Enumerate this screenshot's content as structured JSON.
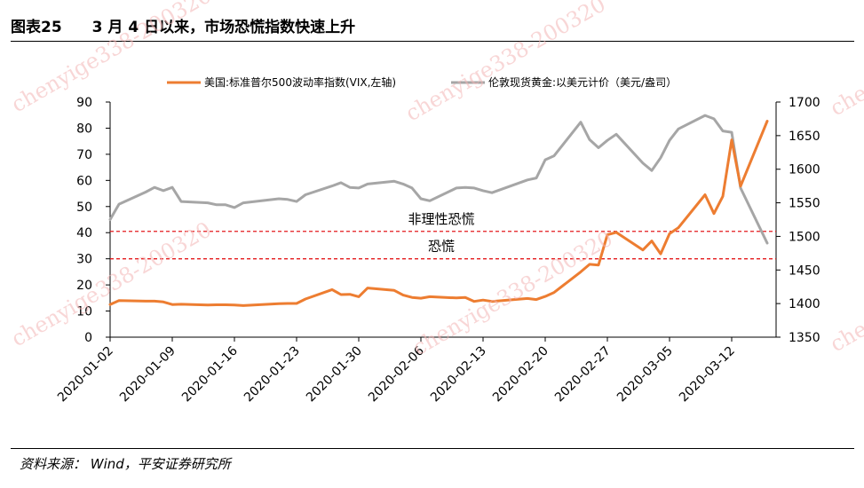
{
  "header": {
    "figure_no": "图表25",
    "title": "3 月 4 日以来，市场恐慌指数快速上升"
  },
  "source": "资料来源：  Wind，平安证券研究所",
  "watermark": "chenyige338-200320",
  "colors": {
    "vix": "#ED7D31",
    "gold": "#A6A6A6",
    "threshold": "#E41A1C",
    "axis": "#000000"
  },
  "chart_data": {
    "type": "line",
    "title": "",
    "xlabel": "",
    "ylabel": "",
    "y2label": "",
    "ylim": [
      0,
      90
    ],
    "yticks": [
      0,
      10,
      20,
      30,
      40,
      50,
      60,
      70,
      80,
      90
    ],
    "y2lim": [
      1350,
      1700
    ],
    "y2ticks": [
      1350,
      1400,
      1450,
      1500,
      1550,
      1600,
      1650,
      1700
    ],
    "x_tick_labels": [
      "2020-01-02",
      "2020-01-09",
      "2020-01-16",
      "2020-01-23",
      "2020-01-30",
      "2020-02-06",
      "2020-02-13",
      "2020-02-20",
      "2020-02-27",
      "2020-03-05",
      "2020-03-12"
    ],
    "legend_position": "top",
    "series": [
      {
        "name": "美国:标准普尔500波动率指数(VIX,左轴)",
        "axis": "left",
        "points": [
          [
            "2020-01-02",
            12.5
          ],
          [
            "2020-01-03",
            14.0
          ],
          [
            "2020-01-06",
            13.8
          ],
          [
            "2020-01-07",
            13.8
          ],
          [
            "2020-01-08",
            13.5
          ],
          [
            "2020-01-09",
            12.5
          ],
          [
            "2020-01-10",
            12.6
          ],
          [
            "2020-01-13",
            12.3
          ],
          [
            "2020-01-14",
            12.4
          ],
          [
            "2020-01-15",
            12.4
          ],
          [
            "2020-01-16",
            12.3
          ],
          [
            "2020-01-17",
            12.1
          ],
          [
            "2020-01-21",
            12.8
          ],
          [
            "2020-01-22",
            12.9
          ],
          [
            "2020-01-23",
            12.9
          ],
          [
            "2020-01-24",
            14.6
          ],
          [
            "2020-01-27",
            18.2
          ],
          [
            "2020-01-28",
            16.3
          ],
          [
            "2020-01-29",
            16.4
          ],
          [
            "2020-01-30",
            15.5
          ],
          [
            "2020-01-31",
            18.8
          ],
          [
            "2020-02-03",
            17.9
          ],
          [
            "2020-02-04",
            16.1
          ],
          [
            "2020-02-05",
            15.2
          ],
          [
            "2020-02-06",
            14.9
          ],
          [
            "2020-02-07",
            15.5
          ],
          [
            "2020-02-10",
            15.0
          ],
          [
            "2020-02-11",
            15.2
          ],
          [
            "2020-02-12",
            13.7
          ],
          [
            "2020-02-13",
            14.2
          ],
          [
            "2020-02-14",
            13.7
          ],
          [
            "2020-02-18",
            14.8
          ],
          [
            "2020-02-19",
            14.4
          ],
          [
            "2020-02-20",
            15.6
          ],
          [
            "2020-02-21",
            17.1
          ],
          [
            "2020-02-24",
            25.0
          ],
          [
            "2020-02-25",
            27.9
          ],
          [
            "2020-02-26",
            27.6
          ],
          [
            "2020-02-27",
            39.2
          ],
          [
            "2020-02-28",
            40.1
          ],
          [
            "2020-03-02",
            33.4
          ],
          [
            "2020-03-03",
            36.8
          ],
          [
            "2020-03-04",
            31.9
          ],
          [
            "2020-03-05",
            39.6
          ],
          [
            "2020-03-06",
            41.9
          ],
          [
            "2020-03-09",
            54.5
          ],
          [
            "2020-03-10",
            47.3
          ],
          [
            "2020-03-11",
            53.9
          ],
          [
            "2020-03-12",
            75.5
          ],
          [
            "2020-03-13",
            57.8
          ],
          [
            "2020-03-16",
            82.7
          ]
        ]
      },
      {
        "name": "伦敦现货黄金:以美元计价（美元/盎司）",
        "axis": "right",
        "points": [
          [
            "2020-01-02",
            1525
          ],
          [
            "2020-01-03",
            1548
          ],
          [
            "2020-01-06",
            1566
          ],
          [
            "2020-01-07",
            1573
          ],
          [
            "2020-01-08",
            1568
          ],
          [
            "2020-01-09",
            1573
          ],
          [
            "2020-01-10",
            1552
          ],
          [
            "2020-01-13",
            1550
          ],
          [
            "2020-01-14",
            1547
          ],
          [
            "2020-01-15",
            1547
          ],
          [
            "2020-01-16",
            1543
          ],
          [
            "2020-01-17",
            1550
          ],
          [
            "2020-01-21",
            1556
          ],
          [
            "2020-01-22",
            1555
          ],
          [
            "2020-01-23",
            1552
          ],
          [
            "2020-01-24",
            1562
          ],
          [
            "2020-01-27",
            1575
          ],
          [
            "2020-01-28",
            1580
          ],
          [
            "2020-01-29",
            1573
          ],
          [
            "2020-01-30",
            1572
          ],
          [
            "2020-01-31",
            1578
          ],
          [
            "2020-02-03",
            1582
          ],
          [
            "2020-02-04",
            1578
          ],
          [
            "2020-02-05",
            1572
          ],
          [
            "2020-02-06",
            1556
          ],
          [
            "2020-02-07",
            1553
          ],
          [
            "2020-02-10",
            1572
          ],
          [
            "2020-02-11",
            1573
          ],
          [
            "2020-02-12",
            1572
          ],
          [
            "2020-02-13",
            1568
          ],
          [
            "2020-02-14",
            1565
          ],
          [
            "2020-02-18",
            1584
          ],
          [
            "2020-02-19",
            1587
          ],
          [
            "2020-02-20",
            1614
          ],
          [
            "2020-02-21",
            1620
          ],
          [
            "2020-02-24",
            1670
          ],
          [
            "2020-02-25",
            1644
          ],
          [
            "2020-02-26",
            1632
          ],
          [
            "2020-02-27",
            1643
          ],
          [
            "2020-02-28",
            1652
          ],
          [
            "2020-03-02",
            1609
          ],
          [
            "2020-03-03",
            1598
          ],
          [
            "2020-03-04",
            1617
          ],
          [
            "2020-03-05",
            1643
          ],
          [
            "2020-03-06",
            1660
          ],
          [
            "2020-03-09",
            1680
          ],
          [
            "2020-03-10",
            1675
          ],
          [
            "2020-03-11",
            1657
          ],
          [
            "2020-03-12",
            1655
          ],
          [
            "2020-03-13",
            1572
          ],
          [
            "2020-03-16",
            1490
          ]
        ]
      }
    ],
    "annotations": [
      {
        "text": "非理性恐慌",
        "y": 40.5,
        "axis": "left"
      },
      {
        "text": "恐慌",
        "y": 30,
        "axis": "left"
      }
    ]
  }
}
